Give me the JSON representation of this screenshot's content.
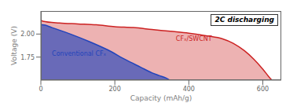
{
  "chart_data": {
    "type": "area",
    "title": "2C discharging",
    "xlabel": "Capacity (mAh/g)",
    "ylabel": "Voltage (V)",
    "xlim": [
      0,
      650
    ],
    "ylim": [
      1.5,
      2.25
    ],
    "xticks": [
      0,
      200,
      400,
      600
    ],
    "yticks": [
      1.75,
      {
        "value": 2.0,
        "label": "2.00"
      }
    ],
    "series": [
      {
        "color": "#cc2222",
        "x": [
          0,
          5,
          50,
          100,
          150,
          200,
          250,
          300,
          350,
          400,
          450,
          490,
          520,
          550,
          575,
          600,
          620,
          625
        ],
        "values": [
          2.15,
          2.14,
          2.12,
          2.11,
          2.1,
          2.08,
          2.07,
          2.05,
          2.03,
          2.01,
          1.98,
          1.95,
          1.9,
          1.82,
          1.73,
          1.62,
          1.52,
          1.5
        ]
      },
      {
        "color": "#2244bb",
        "x": [
          0,
          5,
          30,
          80,
          130,
          180,
          230,
          270,
          300,
          320,
          340,
          350,
          355
        ],
        "values": [
          2.1,
          2.1,
          2.07,
          2.0,
          1.92,
          1.83,
          1.72,
          1.64,
          1.58,
          1.55,
          1.52,
          1.5,
          1.5
        ]
      }
    ],
    "annotations": [
      {
        "text": "Conventional CFₓ",
        "x": 30,
        "y": 1.79,
        "color": "#2244bb"
      },
      {
        "text": "CFₓ/SWCNT",
        "x": 365,
        "y": 1.95,
        "color": "#cc2222"
      }
    ]
  }
}
